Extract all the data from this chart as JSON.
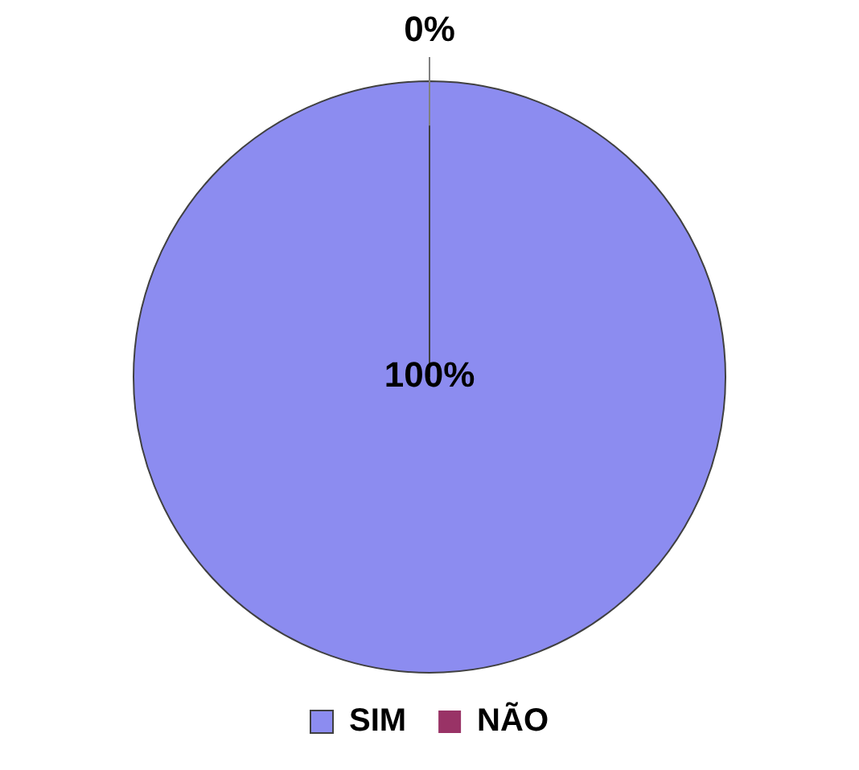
{
  "chart_data": {
    "type": "pie",
    "categories": [
      "SIM",
      "NÃO"
    ],
    "values": [
      100,
      0
    ],
    "colors": [
      "#8c8cf0",
      "#993366"
    ],
    "value_labels": [
      "100%",
      "0%"
    ],
    "legend": "bottom"
  }
}
